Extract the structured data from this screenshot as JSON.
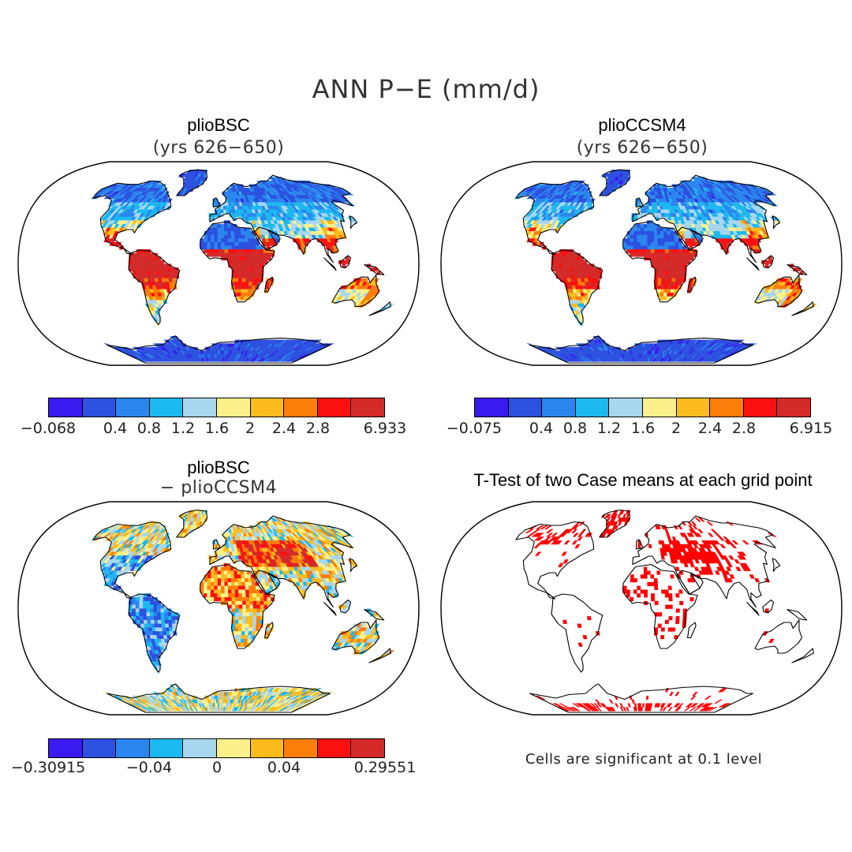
{
  "figure": {
    "title": "ANN P−E (mm/d)"
  },
  "panels": [
    {
      "id": "pliobsc",
      "title": "plioBSC",
      "subtitle": "(yrs 626−650)"
    },
    {
      "id": "plioccsm4",
      "title": "plioCCSM4",
      "subtitle": "(yrs 626−650)"
    },
    {
      "id": "diff",
      "title": "plioBSC",
      "subtitle": "− plioCCSM4"
    },
    {
      "id": "ttest",
      "title": "T-Test of two Case means at each grid point"
    }
  ],
  "colorbars": {
    "colors": [
      "#3a1bef",
      "#2c50e0",
      "#2a86ee",
      "#1cb8f0",
      "#a7d6ef",
      "#fbf08a",
      "#fbbb1d",
      "#fb7d0a",
      "#fb1010",
      "#d42a2a"
    ],
    "left_top": [
      "−0.068",
      "0.4",
      "0.8",
      "1.2",
      "1.6",
      "2",
      "2.4",
      "2.8",
      "6.933"
    ],
    "right_top": [
      "−0.075",
      "0.4",
      "0.8",
      "1.2",
      "1.6",
      "2",
      "2.4",
      "2.8",
      "6.915"
    ],
    "diff": [
      "−0.30915",
      "−0.04",
      "0",
      "0.04",
      "0.29551"
    ]
  },
  "ttest": {
    "note": "Cells are significant at 0.1 level",
    "sig_color": "#ff0000"
  }
}
